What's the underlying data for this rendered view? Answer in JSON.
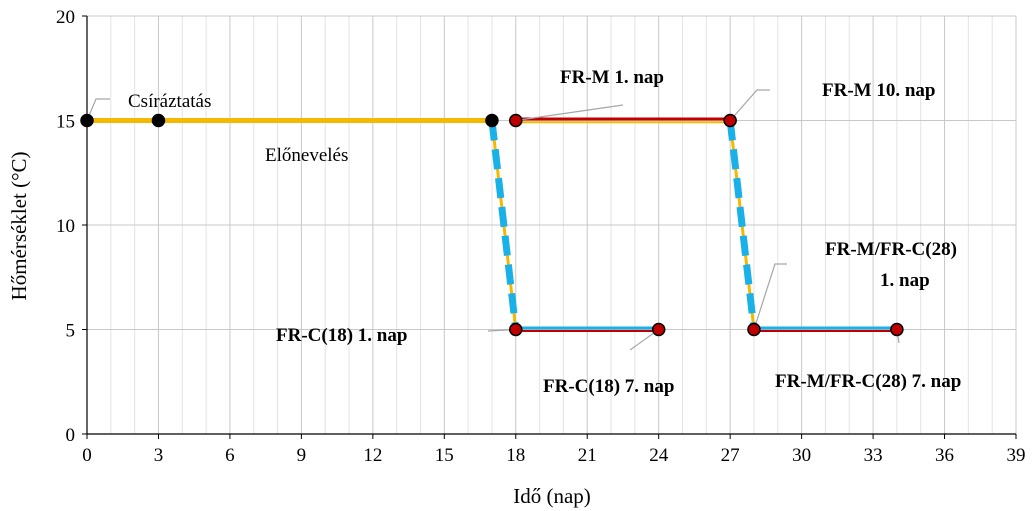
{
  "chart_data": {
    "type": "line",
    "xlabel": "Idő (nap)",
    "ylabel": "Hőmérséklet (°C)",
    "xlim": [
      0,
      39
    ],
    "ylim": [
      0,
      20
    ],
    "xticks": [
      0,
      3,
      6,
      9,
      12,
      15,
      18,
      21,
      24,
      27,
      30,
      33,
      36,
      39
    ],
    "yticks": [
      0,
      5,
      10,
      15,
      20
    ],
    "grid": true,
    "series": [
      {
        "key": "yellow_15",
        "style": "yellow",
        "x": [
          0,
          17
        ],
        "y": [
          15,
          15
        ]
      },
      {
        "key": "red_15",
        "style": "red",
        "x": [
          18,
          27
        ],
        "y": [
          15,
          15
        ]
      },
      {
        "key": "drop1",
        "style": "dashed-drop",
        "x": [
          17,
          18
        ],
        "y": [
          15,
          5
        ]
      },
      {
        "key": "drop2",
        "style": "dashed-drop",
        "x": [
          27,
          28
        ],
        "y": [
          15,
          5
        ]
      },
      {
        "key": "cold1",
        "style": "blue-red",
        "x": [
          18,
          24
        ],
        "y": [
          5,
          5
        ]
      },
      {
        "key": "cold2",
        "style": "blue-red",
        "x": [
          28,
          34
        ],
        "y": [
          5,
          5
        ]
      }
    ],
    "points": [
      {
        "x": 0,
        "y": 15,
        "fill": "black"
      },
      {
        "x": 3,
        "y": 15,
        "fill": "black"
      },
      {
        "x": 17,
        "y": 15,
        "fill": "black"
      },
      {
        "x": 18,
        "y": 15,
        "fill": "red"
      },
      {
        "x": 27,
        "y": 15,
        "fill": "red"
      },
      {
        "x": 18,
        "y": 5,
        "fill": "red"
      },
      {
        "x": 24,
        "y": 5,
        "fill": "red"
      },
      {
        "x": 28,
        "y": 5,
        "fill": "red"
      },
      {
        "x": 34,
        "y": 5,
        "fill": "red"
      }
    ],
    "annotations": {
      "csiraztatas": "Csíráztatás",
      "elonevelés": "Előnevelés",
      "frm1": "FR-M 1. nap",
      "frm10": "FR-M 10.  nap",
      "frc18_1": "FR-C(18) 1. nap",
      "frc18_7": "FR-C(18) 7. nap",
      "frm_frc28_1_a": "FR-M/FR-C(28)",
      "frm_frc28_1_b": "1. nap",
      "frm_frc28_7": "FR-M/FR-C(28) 7. nap"
    },
    "colors": {
      "yellow": "#f5b800",
      "red": "#c00000",
      "blue": "#1ab0e8",
      "point_black": "#000000",
      "point_red": "#c00000",
      "grid": "#c8c8c8",
      "leader": "#a6a6a6"
    }
  }
}
